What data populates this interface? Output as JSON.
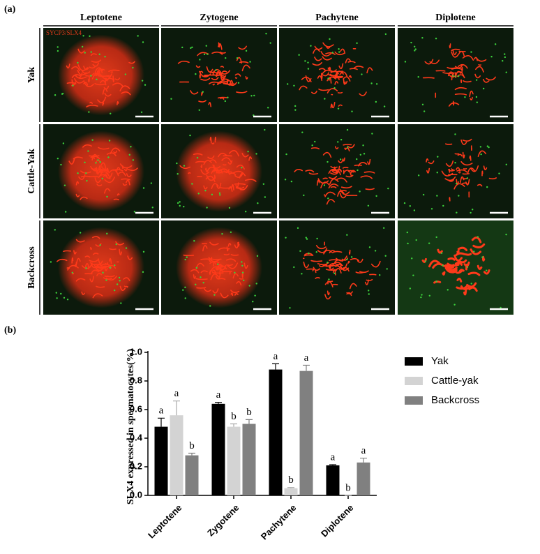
{
  "panel_a": {
    "label": "(a)",
    "columns": [
      "Leptotene",
      "Zytogene",
      "Pachytene",
      "Diplotene"
    ],
    "rows": [
      "Yak",
      "Cattle-Yak",
      "Backcross"
    ],
    "stain_label": "SYCP3/SLX4"
  },
  "panel_b": {
    "label": "(b)"
  },
  "chart_data": {
    "type": "bar",
    "y_label": "SLX4 expressed in spermatocytes(%)",
    "categories": [
      "Leptotene",
      "Zygotene",
      "Pachytene",
      "Diplotene"
    ],
    "series": [
      {
        "name": "Yak",
        "color": "#000000",
        "values": [
          0.48,
          0.64,
          0.88,
          0.21
        ],
        "errors": [
          0.06,
          0.01,
          0.04,
          0.005
        ],
        "letters": [
          "a",
          "a",
          "a",
          "a"
        ]
      },
      {
        "name": "Cattle-yak",
        "color": "#d3d3d3",
        "values": [
          0.56,
          0.48,
          0.05,
          0
        ],
        "errors": [
          0.1,
          0.02,
          0.005,
          0
        ],
        "letters": [
          "a",
          "b",
          "b",
          "b"
        ]
      },
      {
        "name": "Backcross",
        "color": "#808080",
        "values": [
          0.28,
          0.5,
          0.87,
          0.23
        ],
        "errors": [
          0.015,
          0.03,
          0.04,
          0.03
        ],
        "letters": [
          "b",
          "b",
          "a",
          "a"
        ]
      }
    ],
    "ylim": [
      0,
      1.0
    ],
    "yticks": [
      {
        "value": 0,
        "label": "0.0"
      },
      0.2,
      0.4,
      0.6,
      0.8,
      {
        "value": 1.0,
        "label": "1.0"
      }
    ],
    "legend": "right"
  }
}
